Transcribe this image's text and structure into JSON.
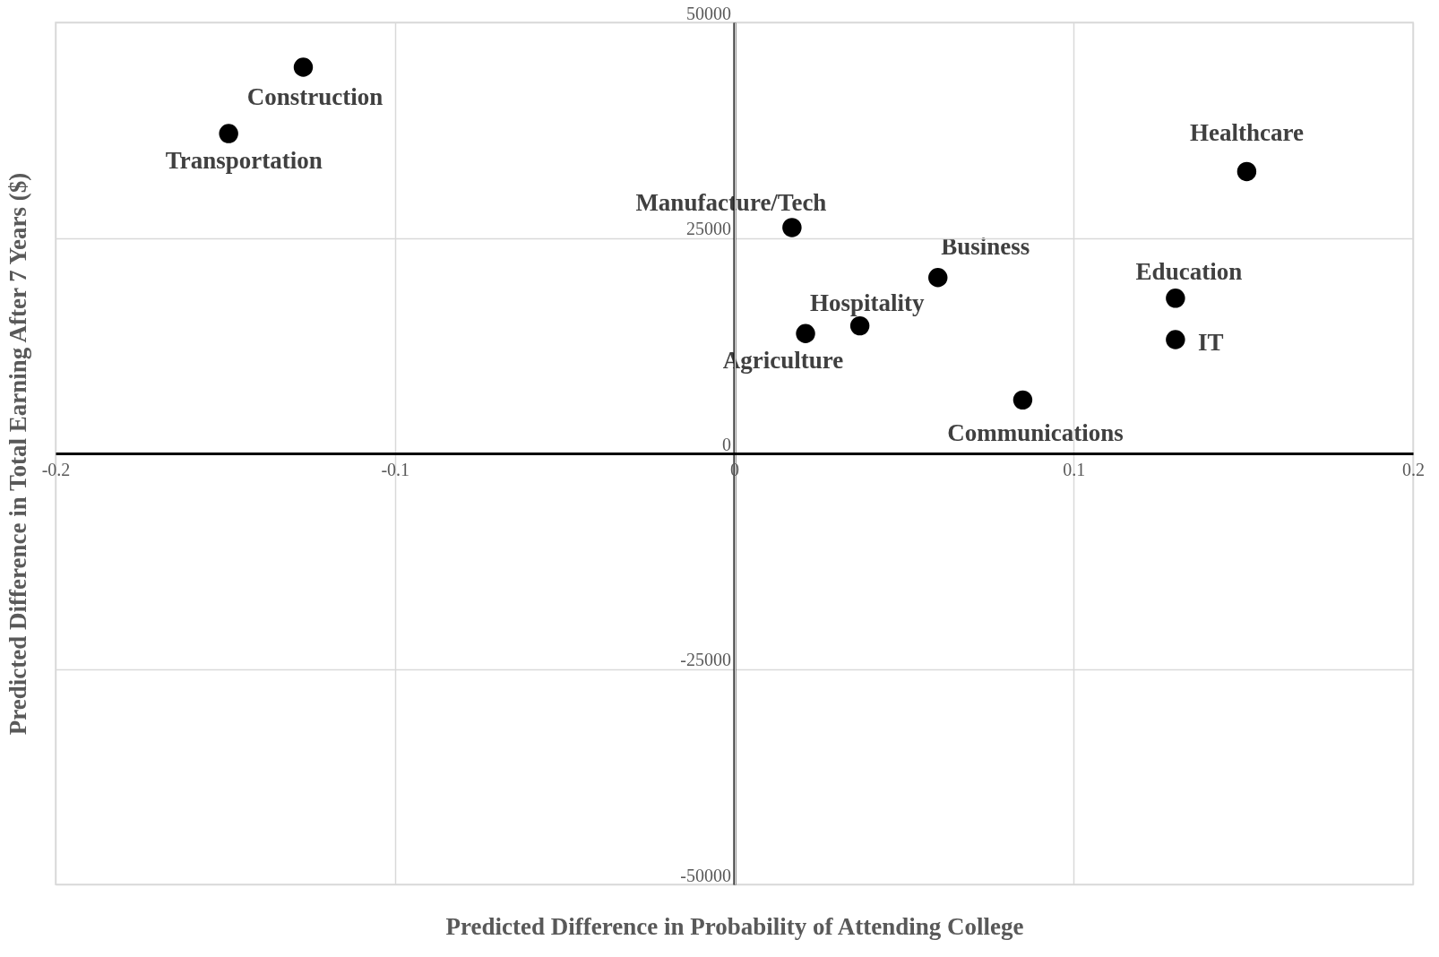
{
  "chart_data": {
    "type": "scatter",
    "xlabel": "Predicted Difference in Probability of Attending College",
    "ylabel": "Predicted Difference in Total Earning  After 7 Years ($)",
    "xlim": [
      -0.2,
      0.2
    ],
    "xticks": [
      -0.2,
      -0.1,
      0,
      0.1,
      0.2
    ],
    "ylim": [
      -50000,
      50000
    ],
    "yticks": [
      -50000,
      -25000,
      0,
      25000,
      50000
    ],
    "grid": true,
    "marker": "circle",
    "series": [
      {
        "name": "Construction",
        "color": "#000000",
        "x": [
          -0.127
        ],
        "values": [
          44800
        ]
      },
      {
        "name": "Transportation",
        "color": "#000000",
        "x": [
          -0.149
        ],
        "values": [
          37100
        ]
      },
      {
        "name": "Healthcare",
        "color": "#000000",
        "x": [
          0.151
        ],
        "values": [
          32700
        ]
      },
      {
        "name": "Manufacture/Tech",
        "color": "#000000",
        "x": [
          0.017
        ],
        "values": [
          26200
        ]
      },
      {
        "name": "Business",
        "color": "#000000",
        "x": [
          0.06
        ],
        "values": [
          20400
        ]
      },
      {
        "name": "Education",
        "color": "#000000",
        "x": [
          0.13
        ],
        "values": [
          18000
        ]
      },
      {
        "name": "Hospitality",
        "color": "#000000",
        "x": [
          0.037
        ],
        "values": [
          14800
        ]
      },
      {
        "name": "Agriculture",
        "color": "#000000",
        "x": [
          0.021
        ],
        "values": [
          13900
        ]
      },
      {
        "name": "IT",
        "color": "#000000",
        "x": [
          0.13
        ],
        "values": [
          13200
        ]
      },
      {
        "name": "Communications",
        "color": "#000000",
        "x": [
          0.085
        ],
        "values": [
          6200
        ]
      }
    ]
  }
}
